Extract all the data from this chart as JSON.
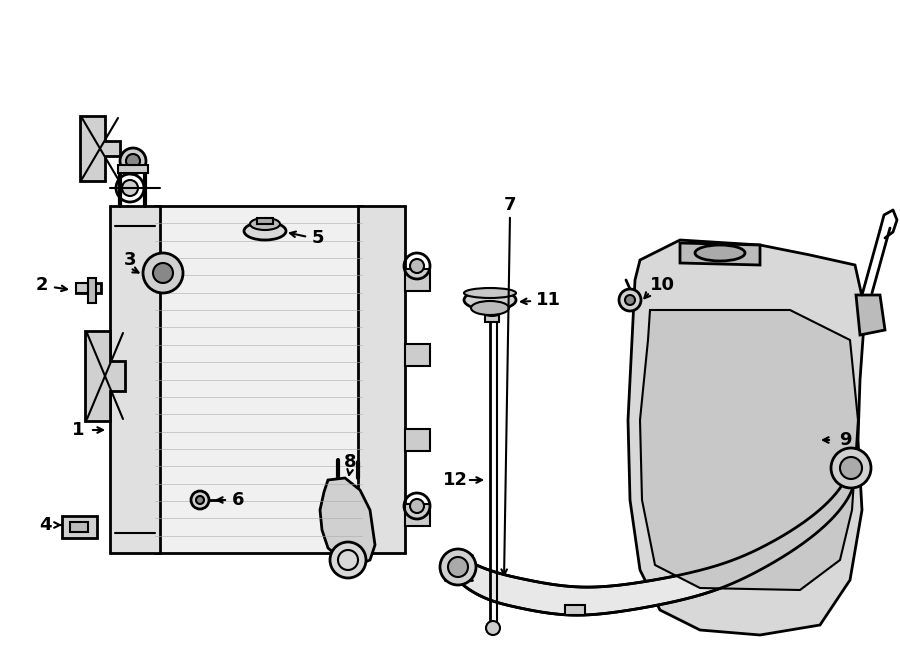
{
  "bg_color": "#ffffff",
  "line_color": "#000000",
  "lw": 1.5,
  "lw2": 2.0,
  "lw3": 2.5,
  "label_fontsize": 13,
  "labels": [
    "1",
    "2",
    "3",
    "4",
    "5",
    "6",
    "7",
    "8",
    "9",
    "10",
    "11",
    "12"
  ]
}
